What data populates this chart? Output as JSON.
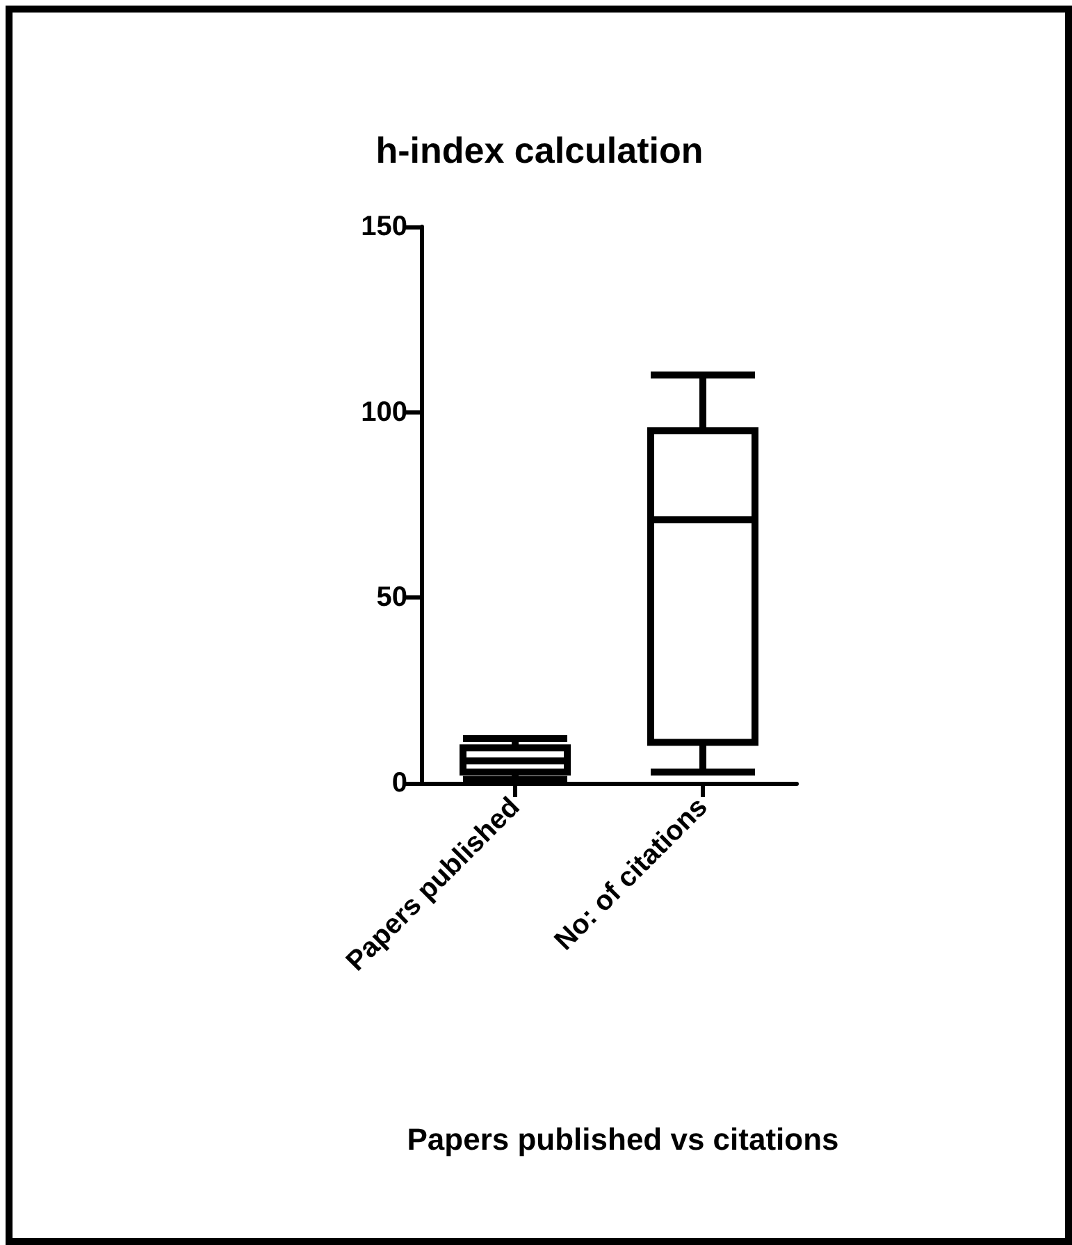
{
  "chart_data": {
    "type": "box",
    "title": "h-index calculation",
    "xlabel": "Papers published vs citations",
    "categories": [
      "Papers published",
      "No: of citations"
    ],
    "series": [
      {
        "color": "#000000",
        "boxes": [
          {
            "low": 1,
            "q1": 3,
            "median": 6,
            "q3": 9.5,
            "high": 12
          },
          {
            "low": 3,
            "q1": 11,
            "median": 71,
            "q3": 95,
            "high": 110
          }
        ]
      }
    ],
    "ylim": [
      0,
      150
    ],
    "yticks": [
      0,
      50,
      100,
      150
    ],
    "grid": false
  }
}
